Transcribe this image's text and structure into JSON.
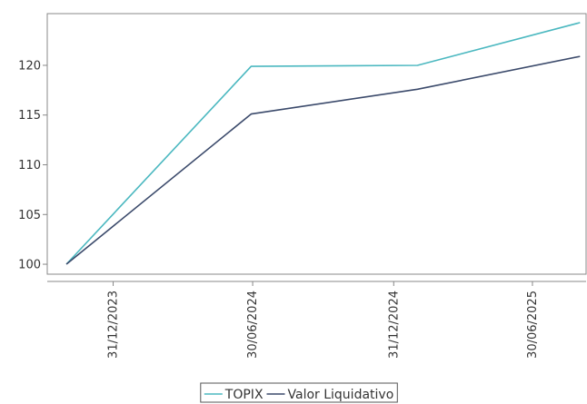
{
  "chart_data": {
    "type": "line",
    "x": [
      "2023-10-31",
      "2024-06-28",
      "2025-01-31",
      "2025-08-31"
    ],
    "series": [
      {
        "name": "TOPIX",
        "color": "#4bb8c0",
        "values": [
          100,
          119.9,
          120.0,
          124.3
        ]
      },
      {
        "name": "Valor Liquidativo",
        "color": "#3b4a6b",
        "values": [
          100,
          115.1,
          117.6,
          120.9
        ]
      }
    ],
    "x_ticks": [
      "31/12/2023",
      "30/06/2024",
      "31/12/2024",
      "30/06/2025"
    ],
    "y_ticks": [
      100,
      105,
      110,
      115,
      120
    ],
    "ylim": [
      99,
      125.2
    ],
    "xlim": [
      "2023-10-06",
      "2025-09-08"
    ],
    "grid": false,
    "legend_position": "bottom-center"
  }
}
